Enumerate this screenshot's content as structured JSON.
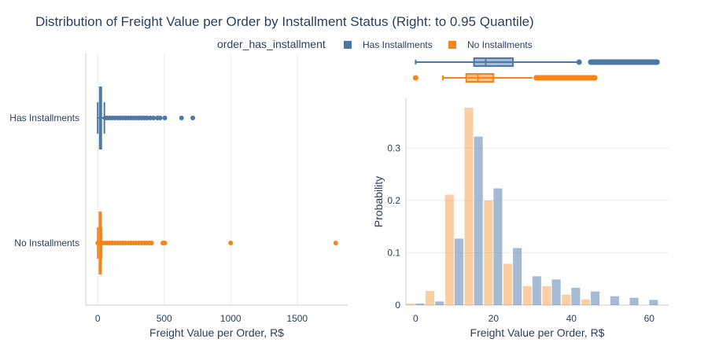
{
  "title": "Distribution of Freight Value per Order by Installment Status (Right: to 0.95 Quantile)",
  "legend": {
    "title": "order_has_installment",
    "items": [
      {
        "label": "Has Installments",
        "color": "#4c78a8"
      },
      {
        "label": "No Installments",
        "color": "#f58518"
      }
    ]
  },
  "chart_data": [
    {
      "type": "box",
      "orientation": "horizontal",
      "xlabel": "Freight Value per Order, R$",
      "xlim": [
        -90,
        1880
      ],
      "xticks": [
        0,
        500,
        1000,
        1500
      ],
      "categories": [
        "Has Installments",
        "No Installments"
      ],
      "grid": true,
      "series": [
        {
          "name": "Has Installments",
          "color": "#4c78a8",
          "q1": 15,
          "median": 18,
          "q3": 25,
          "whisker_low": 0,
          "whisker_high": 50,
          "outliers": [
            55,
            70,
            90,
            110,
            130,
            150,
            170,
            190,
            210,
            230,
            250,
            270,
            290,
            310,
            330,
            350,
            370,
            395,
            420,
            450,
            470,
            505,
            630,
            715
          ]
        },
        {
          "name": "No Installments",
          "color": "#f58518",
          "q1": 13,
          "median": 16,
          "q3": 19,
          "whisker_low": 0,
          "whisker_high": 29,
          "outliers": [
            0,
            35,
            50,
            70,
            90,
            110,
            130,
            150,
            170,
            190,
            210,
            230,
            250,
            270,
            290,
            310,
            330,
            350,
            370,
            390,
            405,
            490,
            505,
            1000,
            1790
          ]
        }
      ]
    },
    {
      "type": "box",
      "orientation": "horizontal",
      "note_position": "marginal over histogram",
      "series": [
        {
          "name": "Has Installments",
          "color": "#4c78a8",
          "whisker_low": 0,
          "q1": 15,
          "median": 18,
          "q3": 25,
          "whisker_high": 42,
          "outliers": [
            42,
            45,
            48,
            51,
            54,
            57,
            60,
            62
          ]
        },
        {
          "name": "No Installments",
          "color": "#f58518",
          "whisker_low": 7,
          "q1": 13,
          "median": 16,
          "q3": 20,
          "whisker_high": 30,
          "outliers": [
            0,
            31,
            34,
            37,
            40,
            43,
            46
          ]
        }
      ]
    },
    {
      "type": "bar",
      "xlabel": "Freight Value per Order, R$",
      "ylabel": "Probability",
      "xlim": [
        -2.5,
        65
      ],
      "ylim": [
        0,
        0.395
      ],
      "xticks": [
        0,
        20,
        40,
        60
      ],
      "yticks": [
        0,
        0.1,
        0.2,
        0.3
      ],
      "bin_width": 5,
      "series": [
        {
          "name": "No Installments",
          "color": "#f58518",
          "opacity": 0.4,
          "bins": [
            0,
            5,
            10,
            15,
            20,
            25,
            30,
            35,
            40,
            45
          ],
          "values": [
            0.003,
            0.027,
            0.211,
            0.377,
            0.2,
            0.079,
            0.036,
            0.036,
            0.02,
            0.011
          ]
        },
        {
          "name": "Has Installments",
          "color": "#4c78a8",
          "opacity": 0.5,
          "bins": [
            0,
            5,
            10,
            15,
            20,
            25,
            30,
            35,
            40,
            45,
            50,
            55,
            60
          ],
          "values": [
            0.003,
            0.007,
            0.127,
            0.322,
            0.223,
            0.109,
            0.055,
            0.049,
            0.033,
            0.026,
            0.017,
            0.014,
            0.01
          ]
        }
      ]
    }
  ]
}
